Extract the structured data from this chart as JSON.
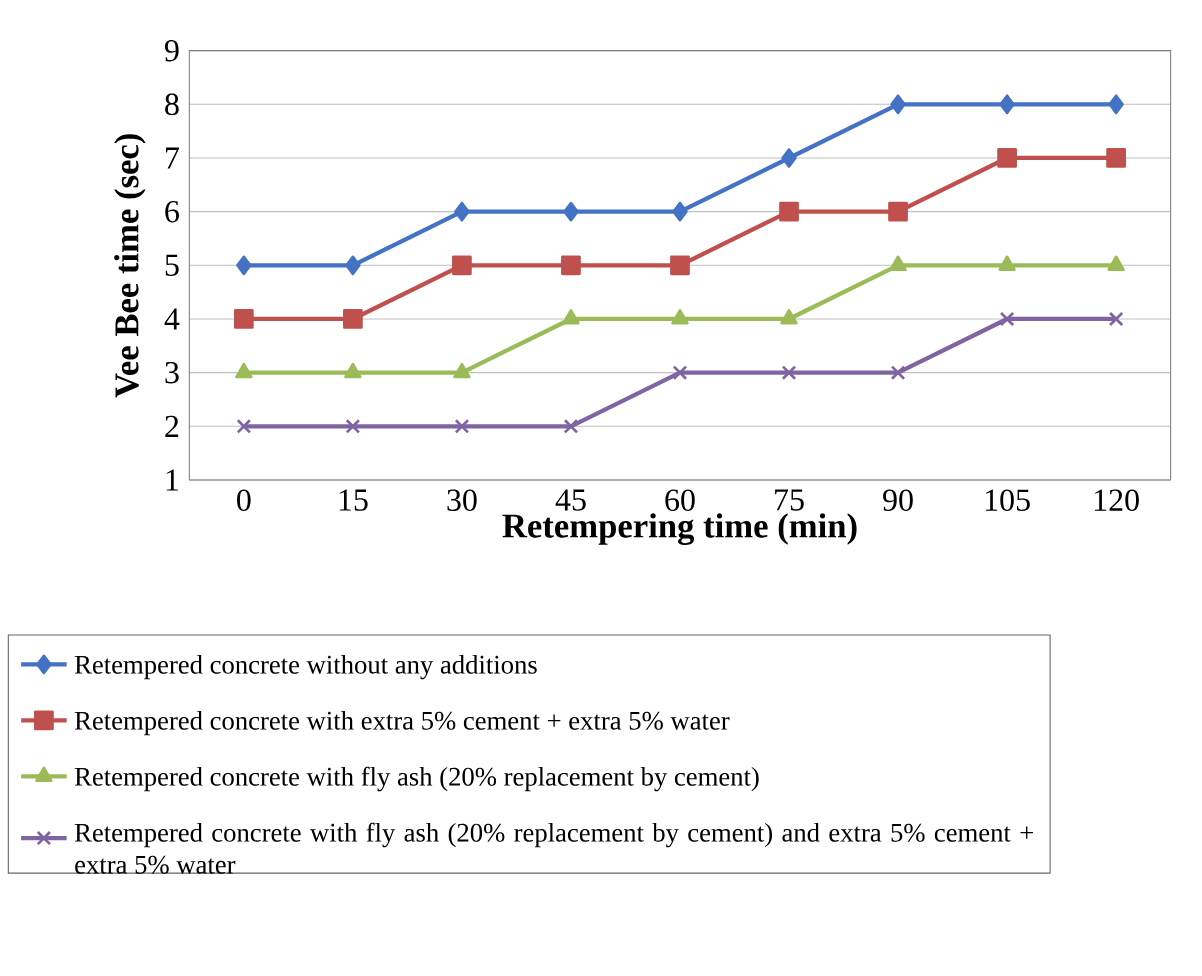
{
  "chart_data": {
    "type": "line",
    "xlabel": "Retempering time (min)",
    "ylabel": "Vee Bee time (sec)",
    "categories": [
      "0",
      "15",
      "30",
      "45",
      "60",
      "75",
      "90",
      "105",
      "120"
    ],
    "ylim": [
      1,
      9
    ],
    "yticks": [
      1,
      2,
      3,
      4,
      5,
      6,
      7,
      8,
      9
    ],
    "grid": "y",
    "legend": "bottom",
    "series": [
      {
        "name": "Retempered concrete without any additions",
        "color": "#4472c4",
        "marker": "diamond",
        "values": [
          5,
          5,
          6,
          6,
          6,
          7,
          8,
          8,
          8
        ]
      },
      {
        "name": "Retempered concrete with extra 5% cement + extra 5% water",
        "color": "#c0504d",
        "marker": "square",
        "values": [
          4,
          4,
          5,
          5,
          5,
          6,
          6,
          7,
          7
        ]
      },
      {
        "name": "Retempered concrete with fly ash (20% replacement by cement)",
        "color": "#9bbb59",
        "marker": "triangle",
        "values": [
          3,
          3,
          3,
          4,
          4,
          4,
          5,
          5,
          5
        ]
      },
      {
        "name": "Retempered concrete with fly ash (20% replacement by cement) and  extra 5% cement + extra 5% water",
        "color": "#8064a2",
        "marker": "cross",
        "values": [
          2,
          2,
          2,
          2,
          3,
          3,
          3,
          4,
          4
        ]
      }
    ]
  }
}
